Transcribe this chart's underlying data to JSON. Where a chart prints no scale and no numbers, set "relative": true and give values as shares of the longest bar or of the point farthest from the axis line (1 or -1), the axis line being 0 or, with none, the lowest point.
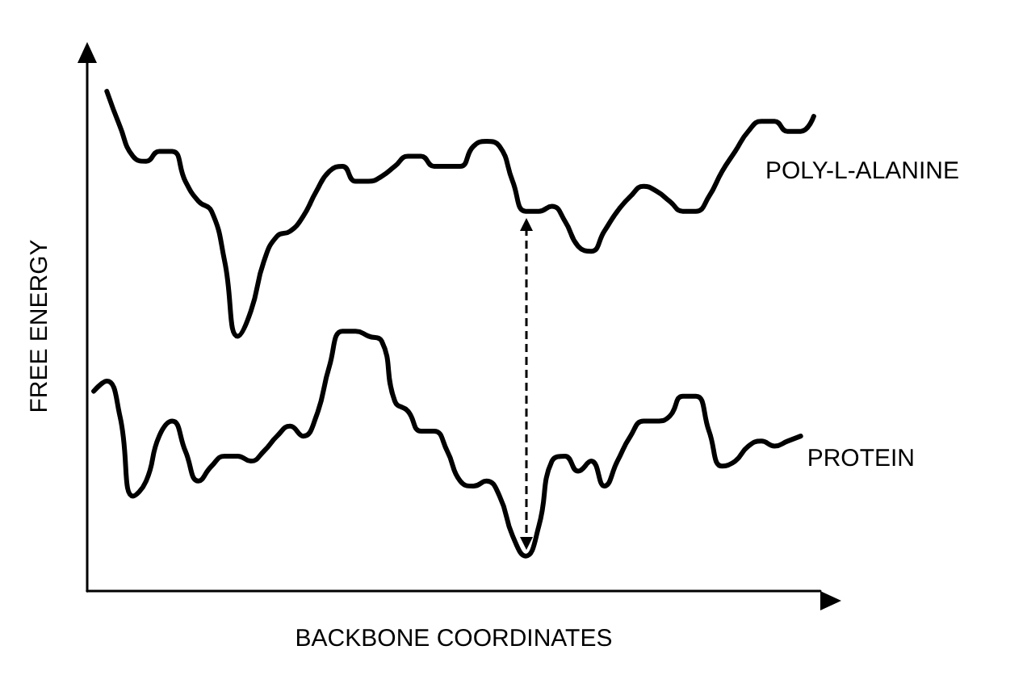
{
  "chart_data": {
    "type": "line",
    "relative": true,
    "xlabel": "BACKBONE COORDINATES",
    "ylabel": "FREE ENERGY",
    "line_style": "solid",
    "categories": [
      null,
      null,
      null,
      null,
      null,
      null,
      null,
      null,
      null,
      null,
      null,
      null,
      null,
      null,
      null,
      null,
      null,
      null,
      null,
      null,
      null,
      null,
      null,
      null,
      null,
      null,
      null,
      null,
      null,
      null,
      null,
      null,
      null,
      null,
      null,
      null,
      null,
      null,
      null,
      null,
      null,
      null,
      null,
      null,
      null,
      null,
      null,
      null,
      null,
      null,
      null,
      null,
      null,
      null,
      null,
      null
    ],
    "series": [
      {
        "name": "POLY-L-ALANINE",
        "color": "#000000",
        "values": [
          null,
          1.0,
          0.93,
          0.87,
          0.86,
          0.88,
          0.88,
          0.82,
          0.78,
          0.76,
          0.66,
          0.51,
          0.56,
          0.66,
          0.71,
          0.72,
          0.75,
          0.8,
          0.84,
          0.85,
          0.82,
          0.82,
          0.83,
          0.85,
          0.87,
          0.87,
          0.85,
          0.85,
          0.85,
          0.89,
          0.9,
          0.89,
          0.82,
          0.76,
          0.76,
          0.77,
          0.74,
          0.69,
          0.68,
          0.72,
          0.76,
          0.79,
          0.81,
          0.8,
          0.78,
          0.76,
          0.76,
          0.79,
          0.84,
          0.88,
          0.92,
          0.94,
          0.94,
          0.92,
          0.92,
          0.95
        ]
      },
      {
        "name": "PROTEIN",
        "color": "#000000",
        "values": [
          0.4,
          0.42,
          0.35,
          0.19,
          0.22,
          0.31,
          0.34,
          0.28,
          0.22,
          0.25,
          0.27,
          0.27,
          0.26,
          0.28,
          0.31,
          0.33,
          0.31,
          0.35,
          0.45,
          0.52,
          0.52,
          0.51,
          0.5,
          0.38,
          0.36,
          0.32,
          0.32,
          0.28,
          0.22,
          0.21,
          0.22,
          0.19,
          0.11,
          0.07,
          0.13,
          0.26,
          0.27,
          0.24,
          0.26,
          0.21,
          0.26,
          0.31,
          0.34,
          0.34,
          0.35,
          0.39,
          0.39,
          0.32,
          0.25,
          0.26,
          0.29,
          0.3,
          0.29,
          0.3,
          0.31,
          null
        ]
      }
    ]
  }
}
